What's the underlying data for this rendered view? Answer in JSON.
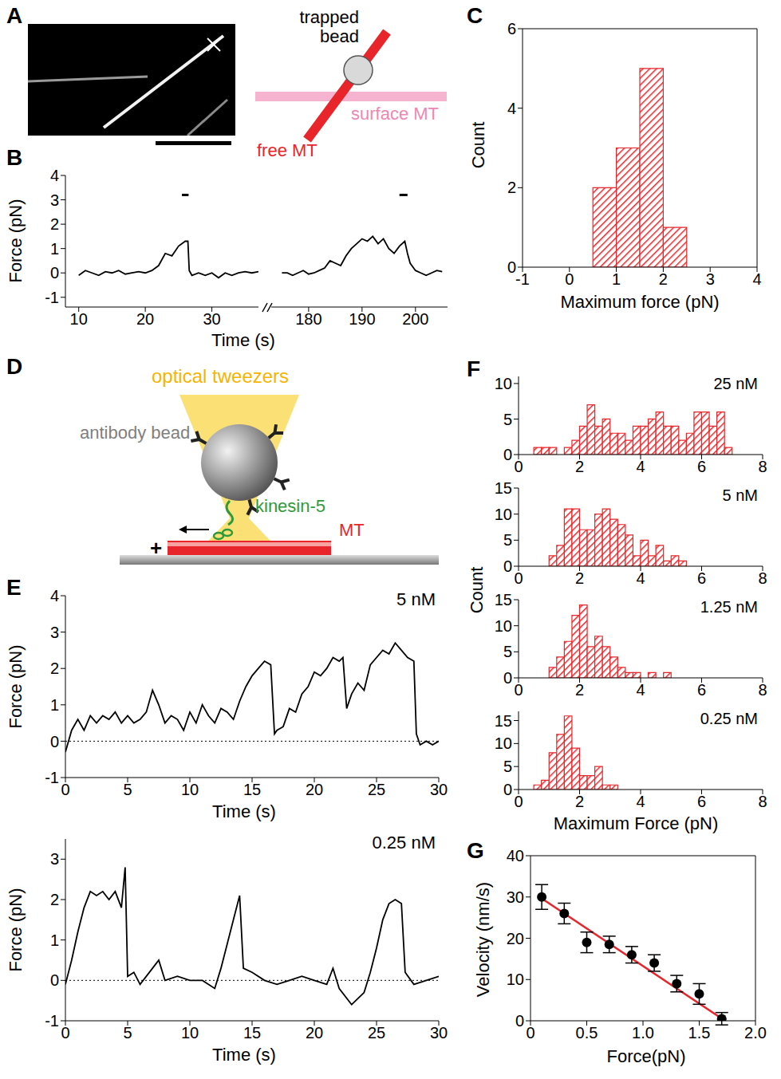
{
  "chart_data": [
    {
      "panel": "B",
      "type": "line",
      "xlabel": "Time (s)",
      "ylabel": "Force (pN)",
      "ylim": [
        -1.4,
        4
      ],
      "yticks": [
        -1,
        0,
        1,
        2,
        3,
        4
      ],
      "color": "#000000",
      "segments": [
        {
          "xlim": [
            8,
            37
          ],
          "xticks": [
            10,
            20,
            30
          ],
          "x": [
            10,
            11,
            12,
            13,
            14,
            15,
            16,
            17,
            18,
            19,
            20,
            21,
            22,
            23,
            24,
            25,
            26,
            26.4,
            26.6,
            27,
            28,
            29,
            30,
            31,
            32,
            33,
            34,
            35,
            36,
            37
          ],
          "values": [
            -0.1,
            0.1,
            0,
            -0.1,
            0.05,
            0,
            0.1,
            -0.05,
            0,
            0.05,
            0,
            0.1,
            0.3,
            0.8,
            0.7,
            1.1,
            1.3,
            1.3,
            0.1,
            -0.1,
            0,
            -0.1,
            0,
            -0.2,
            0,
            -0.1,
            0,
            0.05,
            0,
            0.05
          ]
        },
        {
          "xlim": [
            173,
            206
          ],
          "xticks": [
            180,
            190,
            200
          ],
          "x": [
            175,
            176,
            177,
            178,
            179,
            180,
            181,
            182,
            183,
            184,
            185,
            186,
            187,
            188,
            189,
            190,
            191,
            192,
            193,
            194,
            195,
            196,
            197,
            198,
            198.5,
            199,
            200,
            201,
            202,
            203,
            204,
            205
          ],
          "values": [
            0,
            0,
            -0.1,
            0,
            0.1,
            -0.05,
            0,
            0.1,
            0.2,
            0.5,
            0.4,
            0.3,
            0.7,
            1.0,
            1.2,
            1.4,
            1.3,
            1.5,
            1.2,
            1.4,
            1.0,
            0.8,
            1.1,
            1.3,
            0.8,
            0.4,
            0.1,
            0,
            -0.1,
            0,
            0.1,
            0.05
          ]
        }
      ],
      "event_spans": [
        [
          25.5,
          26.5
        ],
        [
          197,
          198.5
        ]
      ],
      "event_y": 3.2
    },
    {
      "panel": "C",
      "type": "histogram",
      "xlabel": "Maximum force (pN)",
      "ylabel": "Count",
      "xlim": [
        -1,
        4
      ],
      "xticks": [
        -1,
        0,
        1,
        2,
        3,
        4
      ],
      "ylim": [
        0,
        6
      ],
      "yticks": [
        0,
        2,
        4,
        6
      ],
      "bins": [
        0.5,
        1,
        1.5,
        2,
        2.5
      ],
      "counts": [
        2,
        3,
        5,
        1
      ],
      "color": "#e8252a"
    },
    {
      "panel": "E",
      "type": "line",
      "xlabel": "Time (s)",
      "ylabel": "Force (pN)",
      "xlim": [
        0,
        30
      ],
      "xticks": [
        0,
        5,
        10,
        15,
        20,
        25,
        30
      ],
      "color": "#000000",
      "subplots": [
        {
          "annotation": "5 nM",
          "ylim": [
            -1,
            4
          ],
          "yticks": [
            -1,
            0,
            1,
            2,
            3,
            4
          ],
          "reference_y": 0,
          "x": [
            0,
            0.5,
            1,
            1.5,
            2,
            2.5,
            3,
            3.5,
            4,
            4.5,
            5,
            5.5,
            6,
            6.5,
            7,
            7.5,
            8,
            8.5,
            9,
            9.5,
            10,
            10.5,
            11,
            11.5,
            12,
            12.5,
            13,
            13.5,
            14,
            14.5,
            15,
            15.5,
            16,
            16.5,
            16.8,
            17,
            17.5,
            18,
            18.5,
            19,
            19.5,
            20,
            20.5,
            21,
            21.5,
            22,
            22.3,
            22.6,
            23,
            23.5,
            24,
            24.5,
            25,
            25.5,
            26,
            26.5,
            27,
            27.5,
            28,
            28.2,
            28.5,
            29,
            29.5,
            30
          ],
          "values": [
            -0.3,
            0.3,
            0.6,
            0.3,
            0.7,
            0.5,
            0.7,
            0.6,
            0.8,
            0.5,
            0.7,
            0.5,
            0.6,
            0.8,
            1.4,
            1.0,
            0.5,
            0.7,
            0.6,
            0.3,
            0.8,
            0.5,
            1.0,
            0.7,
            0.5,
            0.9,
            0.8,
            0.6,
            1.1,
            1.5,
            1.8,
            2.0,
            2.2,
            2.1,
            0.2,
            0.3,
            0.4,
            0.9,
            0.8,
            1.3,
            1.5,
            1.9,
            1.8,
            2.0,
            2.3,
            2.2,
            2.3,
            0.9,
            1.3,
            1.6,
            1.4,
            2.1,
            2.3,
            2.5,
            2.4,
            2.7,
            2.5,
            2.3,
            2.2,
            0.2,
            -0.1,
            0,
            -0.1,
            0
          ]
        },
        {
          "annotation": "0.25 nM",
          "ylim": [
            -1,
            3.5
          ],
          "yticks": [
            -1,
            0,
            1,
            2,
            3
          ],
          "reference_y": 0,
          "x": [
            0,
            0.5,
            1,
            1.5,
            2,
            2.5,
            3,
            3.5,
            4,
            4.5,
            4.8,
            5,
            5.5,
            6,
            7,
            7.5,
            8,
            9,
            10,
            11,
            12,
            12.5,
            13,
            13.5,
            14,
            14.3,
            15,
            16,
            17,
            18,
            19,
            20,
            21,
            21.5,
            22,
            23,
            24,
            24.5,
            25,
            25.5,
            26,
            26.5,
            27,
            27.3,
            28,
            29,
            30
          ],
          "values": [
            -0.1,
            0.5,
            1.2,
            1.8,
            2.2,
            2.1,
            2.2,
            2.0,
            2.2,
            1.8,
            2.8,
            0.1,
            0.2,
            -0.1,
            0.3,
            0.5,
            0,
            0.1,
            0,
            0,
            -0.2,
            0.3,
            0.9,
            1.5,
            2.1,
            0.3,
            0.2,
            0,
            -0.1,
            0,
            0.1,
            0,
            -0.1,
            0.3,
            -0.2,
            -0.6,
            -0.3,
            0.2,
            0.8,
            1.5,
            1.9,
            2.0,
            1.9,
            0.2,
            -0.1,
            0,
            0.1
          ]
        }
      ]
    },
    {
      "panel": "F",
      "type": "histogram",
      "xlabel": "Maximum Force (pN)",
      "ylabel": "Count",
      "xlim": [
        0,
        8
      ],
      "xticks": [
        0,
        2,
        4,
        6,
        8
      ],
      "color": "#e8252a",
      "subplots": [
        {
          "annotation": "25 nM",
          "ylim": [
            0,
            11
          ],
          "yticks": [
            0,
            5,
            10
          ],
          "bins": [
            0.5,
            0.75,
            1,
            1.25,
            1.5,
            1.75,
            2,
            2.25,
            2.5,
            2.75,
            3,
            3.25,
            3.5,
            3.75,
            4,
            4.25,
            4.5,
            4.75,
            5,
            5.25,
            5.5,
            5.75,
            6,
            6.25,
            6.5,
            6.75,
            7
          ],
          "counts": [
            1,
            1,
            1,
            0,
            1,
            2,
            4,
            7,
            4,
            5,
            3,
            3,
            2,
            4,
            4,
            5,
            6,
            4,
            4,
            2,
            3,
            6,
            6,
            4,
            6,
            1
          ]
        },
        {
          "annotation": "5 nM",
          "ylim": [
            0,
            15
          ],
          "yticks": [
            0,
            5,
            10,
            15
          ],
          "bins": [
            1,
            1.25,
            1.5,
            1.75,
            2,
            2.25,
            2.5,
            2.75,
            3,
            3.25,
            3.5,
            3.75,
            4,
            4.25,
            4.5,
            4.75,
            5,
            5.25,
            5.5
          ],
          "counts": [
            2,
            4,
            11,
            11,
            7,
            7,
            10,
            11,
            9,
            8,
            6,
            2,
            5,
            2,
            4,
            1,
            2,
            1
          ]
        },
        {
          "annotation": "1.25 nM",
          "ylim": [
            0,
            15
          ],
          "yticks": [
            0,
            5,
            10,
            15
          ],
          "bins": [
            1,
            1.25,
            1.5,
            1.75,
            2,
            2.25,
            2.5,
            2.75,
            3,
            3.25,
            3.5,
            3.75,
            4,
            4.25,
            4.5,
            4.75,
            5
          ],
          "counts": [
            2,
            4,
            7,
            12,
            14,
            6,
            8,
            6,
            4,
            2,
            1,
            1,
            0,
            1,
            0,
            1
          ]
        },
        {
          "annotation": "0.25 nM",
          "ylim": [
            0,
            17
          ],
          "yticks": [
            0,
            5,
            10,
            15
          ],
          "bins": [
            0.5,
            0.75,
            1,
            1.25,
            1.5,
            1.75,
            2,
            2.25,
            2.5,
            2.75,
            3,
            3.25
          ],
          "counts": [
            1,
            2,
            8,
            12,
            16,
            9,
            3,
            3,
            5,
            1,
            1
          ]
        }
      ]
    },
    {
      "panel": "G",
      "type": "scatter",
      "xlabel": "Force(pN)",
      "ylabel": "Velocity (nm/s)",
      "xlim": [
        0,
        2
      ],
      "xticks": [
        0,
        0.5,
        {
          "value": 1,
          "label": "1.0"
        },
        1.5,
        {
          "value": 2,
          "label": "2.0"
        }
      ],
      "ylim": [
        0,
        40
      ],
      "yticks": [
        0,
        10,
        20,
        30,
        40
      ],
      "series": [
        {
          "type": "scatter",
          "color": "#000000",
          "x": [
            0.1,
            0.3,
            0.5,
            0.7,
            0.9,
            1.1,
            1.3,
            1.5,
            1.7
          ],
          "values": [
            30,
            26,
            19,
            18.5,
            16,
            14,
            9,
            6.5,
            0.5
          ],
          "errors": [
            3,
            2.5,
            2.5,
            2,
            2,
            2,
            2,
            2.5,
            1.5
          ]
        },
        {
          "type": "line",
          "color": "#e8252a",
          "x": [
            0.08,
            1.73
          ],
          "values": [
            30,
            0
          ]
        }
      ]
    }
  ],
  "diagrams": [
    {
      "panel": "A",
      "type": "diagram",
      "labels": {
        "bead": "trapped bead",
        "surface": "surface MT",
        "free": "free MT"
      }
    },
    {
      "panel": "D",
      "type": "diagram",
      "labels": {
        "light": "optical tweezers",
        "bead": "antibody bead",
        "motor": "kinesin-5",
        "filament": "MT",
        "end": "+"
      }
    }
  ]
}
